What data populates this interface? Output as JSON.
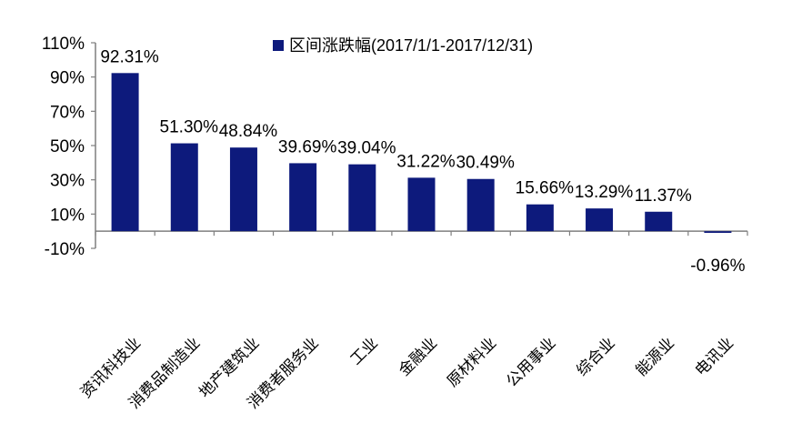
{
  "chart_data": {
    "type": "bar",
    "series": [
      {
        "name": "区间涨跌幅(2017/1/1-2017/12/31)",
        "values": [
          92.31,
          51.3,
          48.84,
          39.69,
          39.04,
          31.22,
          30.49,
          15.66,
          13.29,
          11.37,
          -0.96
        ]
      }
    ],
    "categories": [
      "资讯科技业",
      "消费品制造业",
      "地产建筑业",
      "消费者服务业",
      "工业",
      "金融业",
      "原材料业",
      "公用事业",
      "综合业",
      "能源业",
      "电讯业"
    ],
    "data_labels": [
      "92.31%",
      "51.30%",
      "48.84%",
      "39.69%",
      "39.04%",
      "31.22%",
      "30.49%",
      "15.66%",
      "13.29%",
      "11.37%",
      "-0.96%"
    ],
    "ylim": [
      -10,
      110
    ],
    "yticks": [
      110,
      90,
      70,
      50,
      30,
      10,
      -10
    ],
    "ytick_labels": [
      "110%",
      "90%",
      "70%",
      "50%",
      "30%",
      "10%",
      "-10%"
    ],
    "legend": {
      "label": "区间涨跌幅(2017/1/1-2017/12/31)",
      "placement": "top"
    },
    "grid": false,
    "title": "",
    "xlabel": "",
    "ylabel": "",
    "colors": {
      "bar": "#0d1a7c",
      "axis": "#7f7f7f",
      "text": "#000000"
    }
  }
}
